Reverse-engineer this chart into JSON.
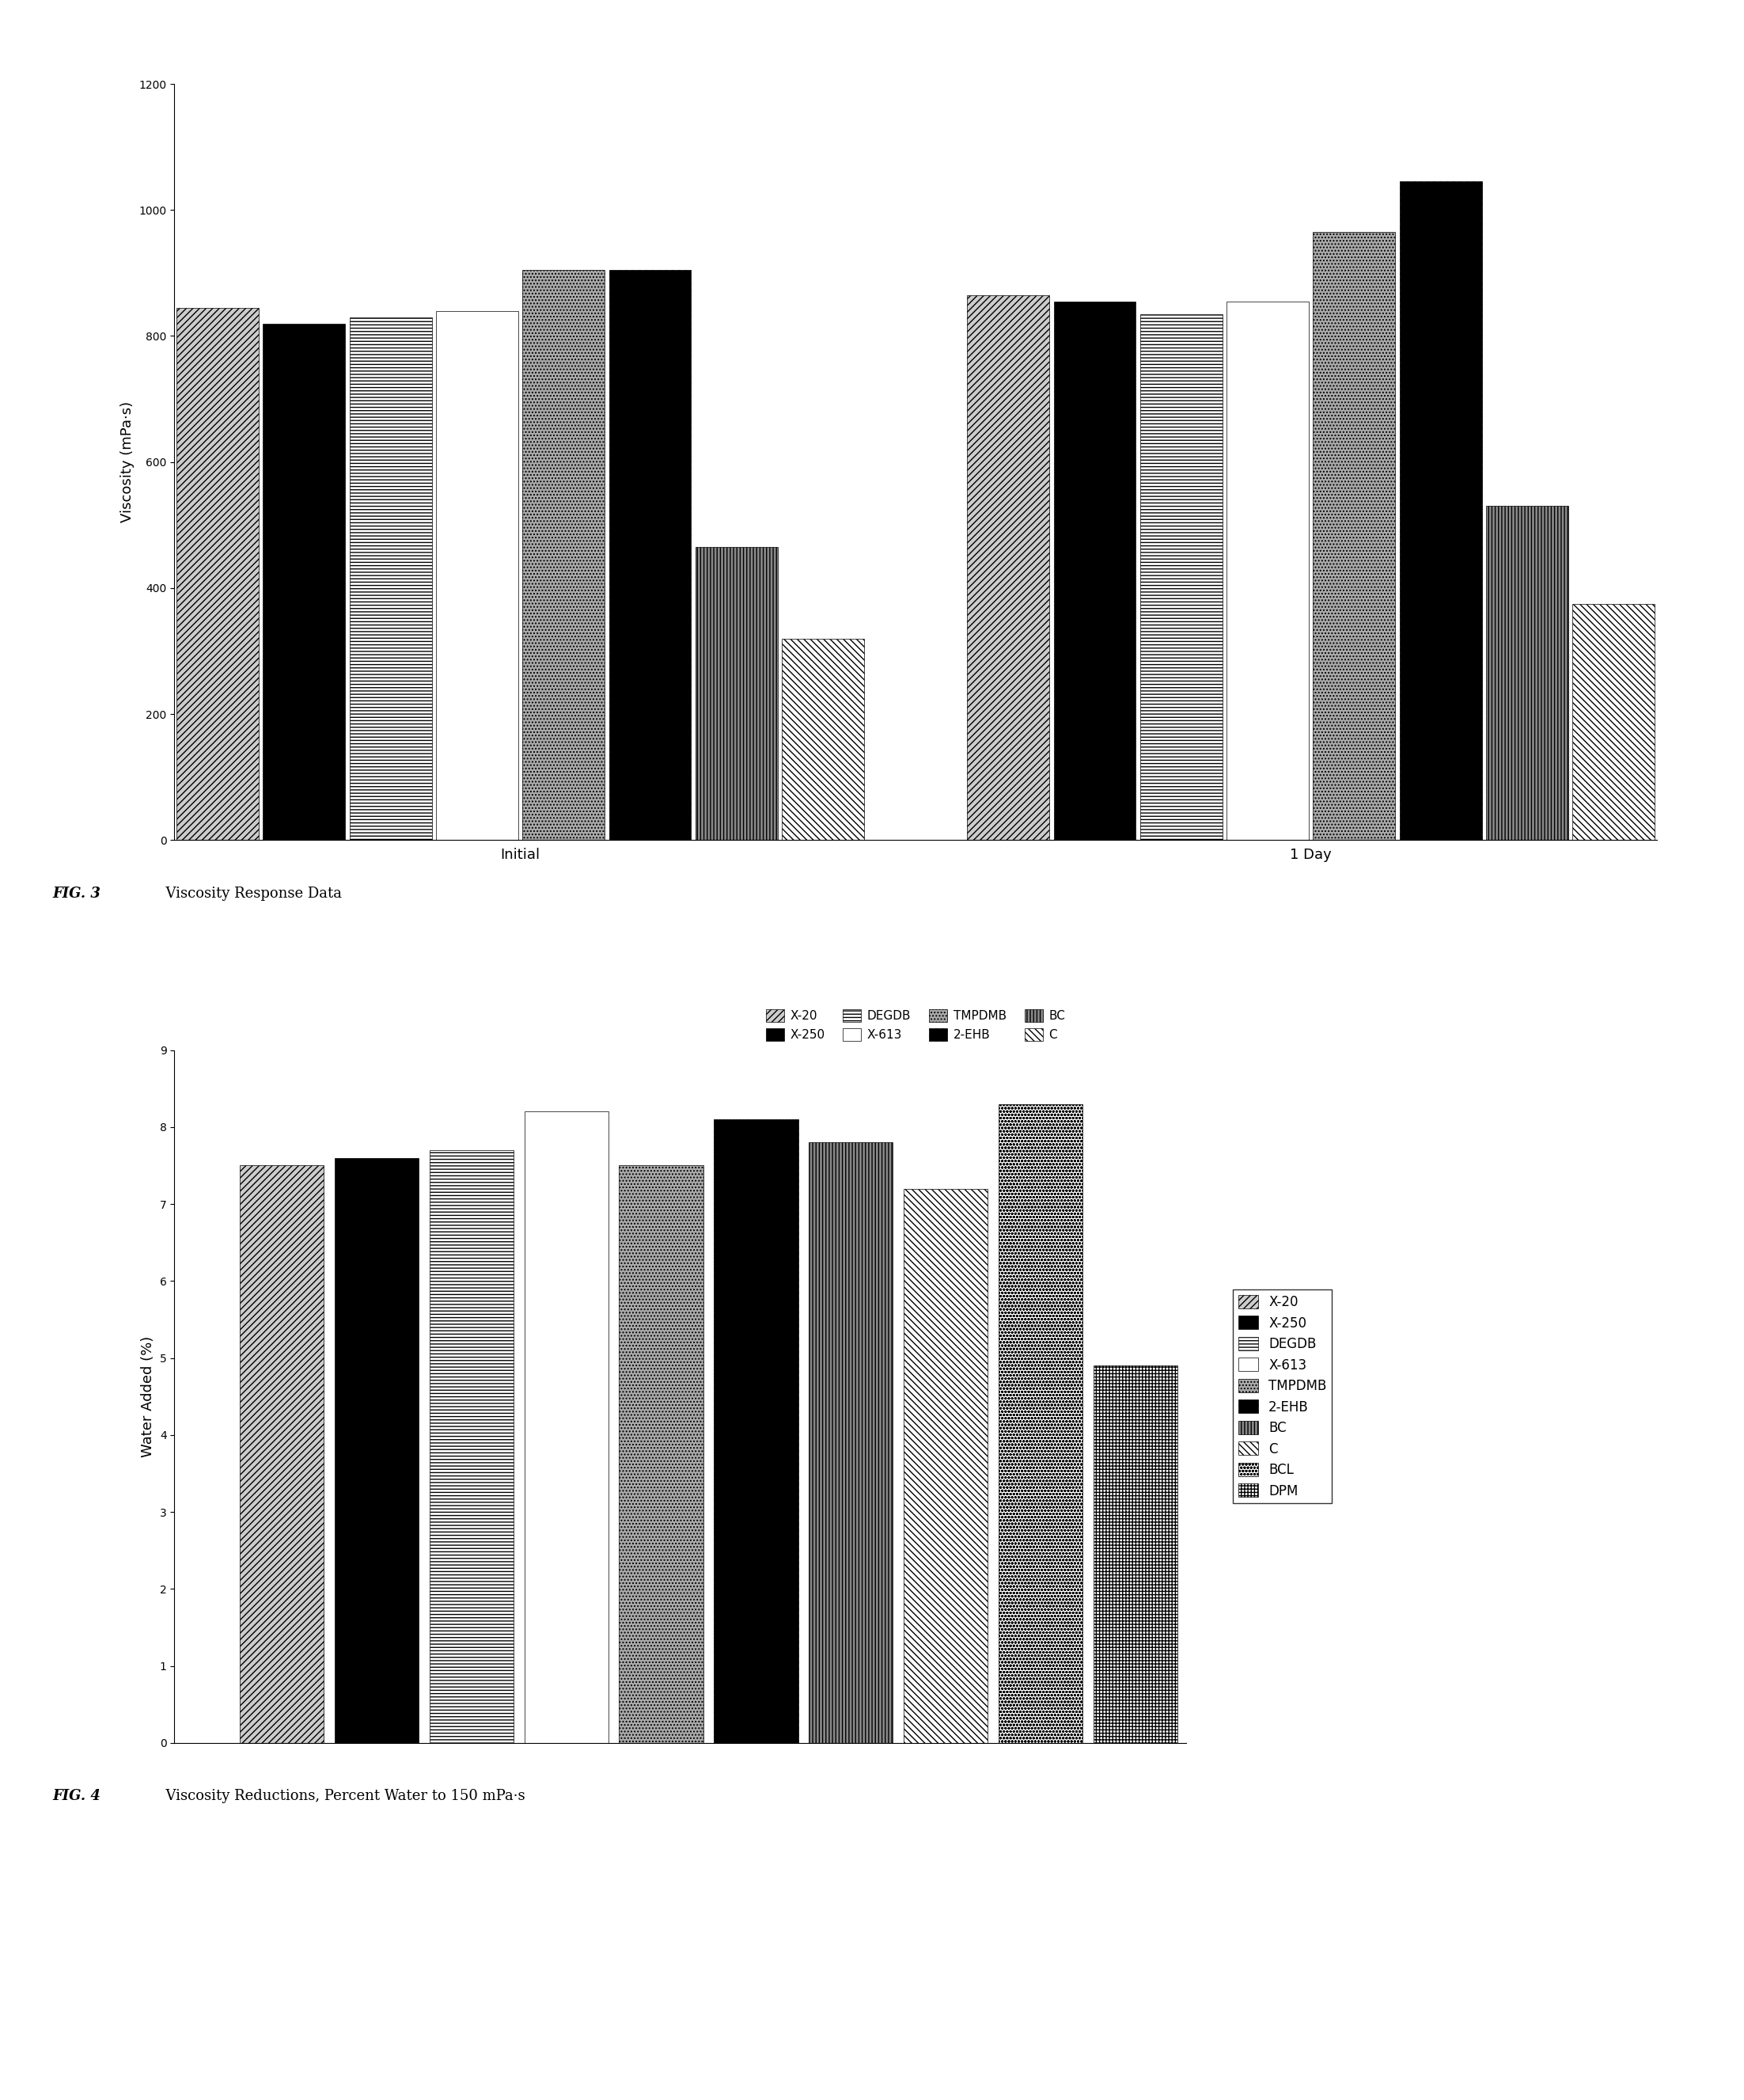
{
  "fig1": {
    "title": "FIG. 3  Viscosity Response Data",
    "ylabel": "Viscosity (mPa·s)",
    "groups": [
      "Initial",
      "1 Day"
    ],
    "series": [
      "X-20",
      "X-250",
      "DEGDB",
      "X-613",
      "TMPDMB",
      "2-EHB",
      "BC",
      "C"
    ],
    "initial_values": [
      845,
      820,
      830,
      840,
      905,
      905,
      465,
      320,
      620,
      320
    ],
    "day1_values": [
      865,
      855,
      835,
      855,
      965,
      1045,
      530,
      375,
      665,
      355
    ],
    "initial_8bars": [
      845,
      820,
      830,
      840,
      905,
      905,
      465,
      320
    ],
    "day1_8bars": [
      865,
      855,
      835,
      855,
      965,
      1045,
      530,
      375
    ],
    "ylim": [
      0,
      1200
    ],
    "yticks": [
      0,
      200,
      400,
      600,
      800,
      1000,
      1200
    ]
  },
  "fig2": {
    "title": "FIG. 4  Viscosity Reductions, Percent Water to 150 mPa·s",
    "ylabel": "Water Added (%)",
    "series": [
      "X-20",
      "X-250",
      "DEGDB",
      "X-613",
      "TMPDMB",
      "2-EHB",
      "BC",
      "C",
      "BCL",
      "DPM"
    ],
    "values": [
      7.5,
      7.6,
      7.7,
      8.2,
      7.5,
      8.1,
      7.8,
      7.2,
      7.1,
      8.3,
      8.3,
      4.1,
      4.9
    ],
    "values_10bars": [
      7.5,
      7.6,
      7.7,
      8.2,
      7.5,
      8.1,
      7.8,
      7.2,
      8.3,
      4.9
    ],
    "ylim": [
      0,
      9
    ],
    "yticks": [
      0,
      1,
      2,
      3,
      4,
      5,
      6,
      7,
      8,
      9
    ]
  },
  "hatches": [
    {
      "hatch": "//",
      "facecolor": "white",
      "edgecolor": "black"
    },
    {
      "hatch": "",
      "facecolor": "black",
      "edgecolor": "black"
    },
    {
      "hatch": "//",
      "facecolor": "lightgray",
      "edgecolor": "black"
    },
    {
      "hatch": "===",
      "facecolor": "white",
      "edgecolor": "black"
    },
    {
      "hatch": "...",
      "facecolor": "lightgray",
      "edgecolor": "black"
    },
    {
      "hatch": "xx",
      "facecolor": "black",
      "edgecolor": "black"
    },
    {
      "hatch": "++",
      "facecolor": "darkgray",
      "edgecolor": "black"
    },
    {
      "hatch": "**",
      "facecolor": "white",
      "edgecolor": "black"
    },
    {
      "hatch": "oo",
      "facecolor": "white",
      "edgecolor": "black"
    },
    {
      "hatch": "OO",
      "facecolor": "white",
      "edgecolor": "black"
    }
  ],
  "legend1_labels": [
    "X-20",
    "X-250",
    "DEGDB",
    "X-613",
    "TMPDMB",
    "2-EHB",
    "BC",
    "C"
  ],
  "legend2_labels": [
    "X-20",
    "X-250",
    "DEGDB",
    "X-613",
    "TMPDMB",
    "2-EHB",
    "BC",
    "C",
    "BCL",
    "DPM"
  ],
  "background_color": "#ffffff"
}
